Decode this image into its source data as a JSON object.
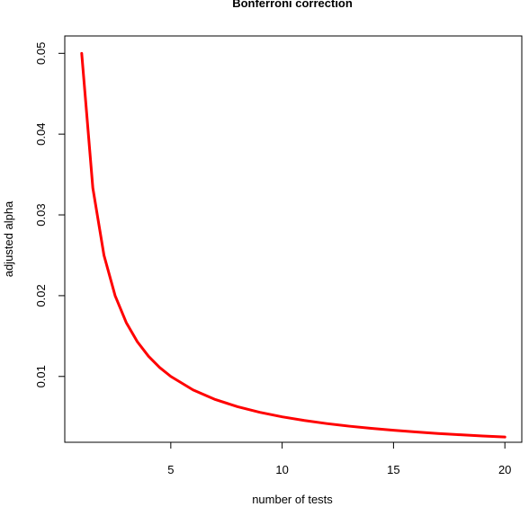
{
  "chart_data": {
    "type": "line",
    "title": "Bonferroni correction",
    "xlabel": "number of tests",
    "ylabel": "adjusted alpha",
    "xlim": [
      0.24,
      20.76
    ],
    "ylim": [
      0.00185,
      0.05215
    ],
    "xticks": [
      5,
      10,
      15,
      20
    ],
    "xtick_labels": [
      "5",
      "10",
      "15",
      "20"
    ],
    "yticks": [
      0.01,
      0.02,
      0.03,
      0.04,
      0.05
    ],
    "ytick_labels": [
      "0.01",
      "0.02",
      "0.03",
      "0.04",
      "0.05"
    ],
    "grid": false,
    "legend": "none",
    "series": [
      {
        "color": "#ff0000",
        "x": [
          1,
          1.5,
          2,
          2.5,
          3,
          3.5,
          4,
          4.5,
          5,
          6,
          7,
          8,
          9,
          10,
          11,
          12,
          13,
          14,
          15,
          16,
          17,
          18,
          19,
          20
        ],
        "y": [
          0.05,
          0.033333,
          0.025,
          0.02,
          0.016667,
          0.014286,
          0.0125,
          0.011111,
          0.01,
          0.008333,
          0.007143,
          0.00625,
          0.005556,
          0.005,
          0.004545,
          0.004167,
          0.003846,
          0.003571,
          0.003333,
          0.003125,
          0.002941,
          0.002778,
          0.002632,
          0.0025
        ]
      }
    ]
  }
}
